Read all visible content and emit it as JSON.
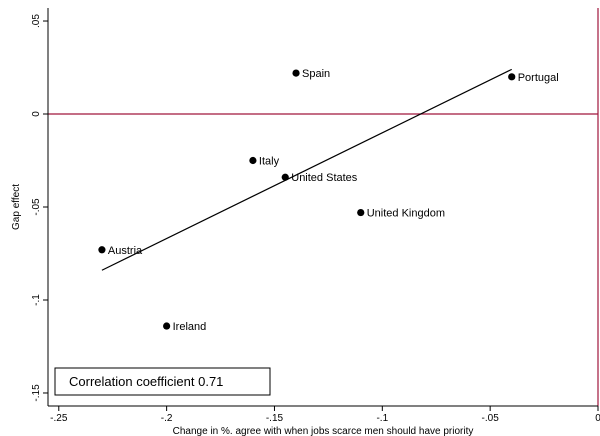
{
  "chart_data": {
    "type": "scatter",
    "title": "",
    "xlabel": "Change in %. agree with when jobs scarce men should have priority",
    "ylabel": "Gap effect",
    "xlim": [
      -0.255,
      0.0
    ],
    "ylim": [
      -0.157,
      0.057
    ],
    "x_ticks": [
      {
        "value": -0.25,
        "label": "-.25"
      },
      {
        "value": -0.2,
        "label": "-.2"
      },
      {
        "value": -0.15,
        "label": "-.15"
      },
      {
        "value": -0.1,
        "label": "-.1"
      },
      {
        "value": -0.05,
        "label": "-.05"
      },
      {
        "value": 0,
        "label": "0"
      }
    ],
    "y_ticks": [
      {
        "value": 0.05,
        "label": ".05"
      },
      {
        "value": 0,
        "label": "0"
      },
      {
        "value": -0.05,
        "label": "-.05"
      },
      {
        "value": -0.1,
        "label": "-.1"
      },
      {
        "value": -0.15,
        "label": "-.15"
      }
    ],
    "grid": false,
    "points": [
      {
        "label": "Spain",
        "x": -0.14,
        "y": 0.022
      },
      {
        "label": "Portugal",
        "x": -0.04,
        "y": 0.02
      },
      {
        "label": "Italy",
        "x": -0.16,
        "y": -0.025
      },
      {
        "label": "United States",
        "x": -0.145,
        "y": -0.034
      },
      {
        "label": "United Kingdom",
        "x": -0.11,
        "y": -0.053
      },
      {
        "label": "Austria",
        "x": -0.23,
        "y": -0.073
      },
      {
        "label": "Ireland",
        "x": -0.2,
        "y": -0.114
      }
    ],
    "fit_line": {
      "x1": -0.23,
      "y1": -0.084,
      "x2": -0.04,
      "y2": 0.024
    },
    "reference_lines": {
      "y": 0,
      "x": 0,
      "color": "#a0163c"
    },
    "annotation": "Correlation coefficient  0.71",
    "colors": {
      "points": "#000000",
      "fit_line": "#000000",
      "reference": "#a0163c",
      "axis": "#000000"
    }
  }
}
